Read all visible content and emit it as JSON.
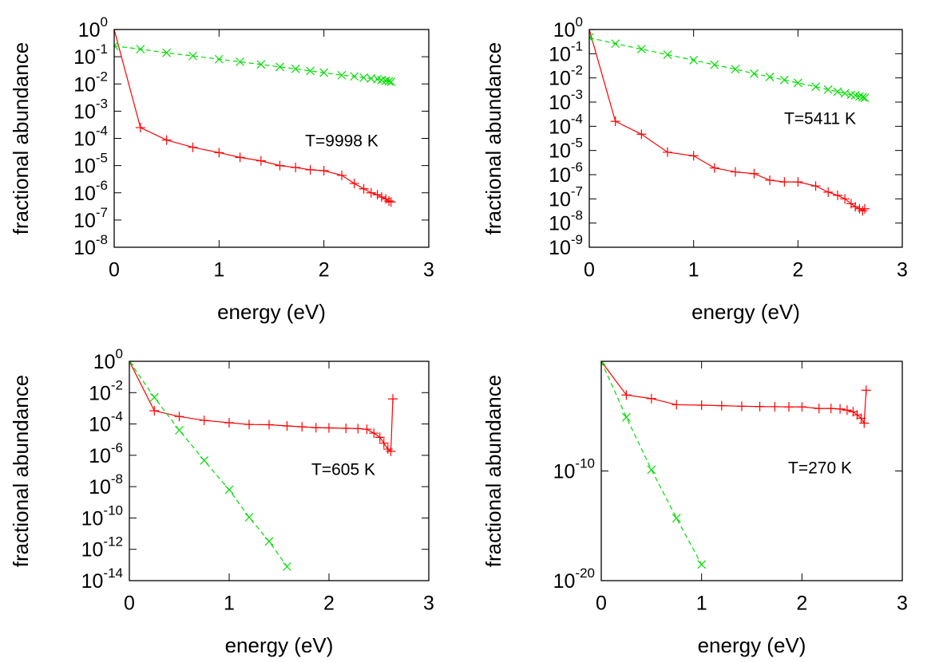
{
  "chart_data": [
    {
      "type": "line",
      "xlabel": "energy (eV)",
      "ylabel": "fractional abundance",
      "annotation": "T=9998 K",
      "xlim": [
        0,
        3
      ],
      "xticks": [
        0,
        1,
        2,
        3
      ],
      "ylog": true,
      "ylim": [
        1e-08,
        1
      ],
      "yticks": [
        {
          "value": 1,
          "label": "10^0"
        },
        {
          "value": 0.1,
          "label": "10^-1"
        },
        {
          "value": 0.01,
          "label": "10^-2"
        },
        {
          "value": 0.001,
          "label": "10^-3"
        },
        {
          "value": 0.0001,
          "label": "10^-4"
        },
        {
          "value": 1e-05,
          "label": "10^-5"
        },
        {
          "value": 1e-06,
          "label": "10^-6"
        },
        {
          "value": 1e-07,
          "label": "10^-7"
        },
        {
          "value": 1e-08,
          "label": "10^-8"
        }
      ],
      "x": [
        0,
        0.25,
        0.5,
        0.75,
        1.0,
        1.2,
        1.4,
        1.58,
        1.73,
        1.87,
        2.0,
        2.17,
        2.29,
        2.38,
        2.45,
        2.51,
        2.55,
        2.59,
        2.62,
        2.64
      ],
      "series": [
        {
          "color": "#ff0000",
          "marker": "+",
          "dashed": false,
          "values": [
            1,
            0.00025,
            8.7e-05,
            4.7e-05,
            3e-05,
            2e-05,
            1.5e-05,
            1e-05,
            8.5e-06,
            7e-06,
            6.5e-06,
            4.4e-06,
            2.2e-06,
            1.4e-06,
            1e-06,
            8.5e-07,
            7e-07,
            6e-07,
            5e-07,
            4.6e-07
          ]
        },
        {
          "color": "#00dd00",
          "marker": "x",
          "dashed": true,
          "values": [
            0.25,
            0.19,
            0.14,
            0.107,
            0.081,
            0.065,
            0.052,
            0.042,
            0.036,
            0.03,
            0.026,
            0.021,
            0.019,
            0.017,
            0.016,
            0.015,
            0.014,
            0.013,
            0.0125,
            0.012
          ]
        }
      ]
    },
    {
      "type": "line",
      "xlabel": "energy (eV)",
      "ylabel": "fractional abundance",
      "annotation": "T=5411 K",
      "xlim": [
        0,
        3
      ],
      "xticks": [
        0,
        1,
        2,
        3
      ],
      "ylog": true,
      "ylim": [
        1e-09,
        1
      ],
      "yticks": [
        {
          "value": 1,
          "label": "10^0"
        },
        {
          "value": 0.1,
          "label": "10^-1"
        },
        {
          "value": 0.01,
          "label": "10^-2"
        },
        {
          "value": 0.001,
          "label": "10^-3"
        },
        {
          "value": 0.0001,
          "label": "10^-4"
        },
        {
          "value": 1e-05,
          "label": "10^-5"
        },
        {
          "value": 1e-06,
          "label": "10^-6"
        },
        {
          "value": 1e-07,
          "label": "10^-7"
        },
        {
          "value": 1e-08,
          "label": "10^-8"
        },
        {
          "value": 1e-09,
          "label": "10^-9"
        }
      ],
      "x": [
        0,
        0.25,
        0.5,
        0.75,
        1.0,
        1.2,
        1.4,
        1.58,
        1.73,
        1.87,
        2.0,
        2.17,
        2.29,
        2.38,
        2.45,
        2.51,
        2.55,
        2.59,
        2.62,
        2.64
      ],
      "series": [
        {
          "color": "#ff0000",
          "marker": "+",
          "dashed": false,
          "values": [
            1,
            0.00016,
            4.7e-05,
            8.5e-06,
            6e-06,
            1.9e-06,
            1.3e-06,
            1.1e-06,
            5.9e-07,
            5e-07,
            5e-07,
            3.4e-07,
            1.9e-07,
            1.4e-07,
            1e-07,
            6.3e-08,
            4.7e-08,
            3.9e-08,
            3.2e-08,
            3.9e-08
          ]
        },
        {
          "color": "#00dd00",
          "marker": "x",
          "dashed": true,
          "values": [
            0.46,
            0.26,
            0.155,
            0.091,
            0.054,
            0.035,
            0.023,
            0.015,
            0.011,
            0.0082,
            0.0062,
            0.0043,
            0.0033,
            0.0027,
            0.0023,
            0.002,
            0.0019,
            0.0017,
            0.0016,
            0.0015
          ]
        }
      ]
    },
    {
      "type": "line",
      "xlabel": "energy (eV)",
      "ylabel": "fractional abundance",
      "annotation": "T=605 K",
      "xlim": [
        0,
        3
      ],
      "xticks": [
        0,
        1,
        2,
        3
      ],
      "ylog": true,
      "ylim": [
        1e-14,
        1
      ],
      "yticks": [
        {
          "value": 1,
          "label": "10^0"
        },
        {
          "value": 0.01,
          "label": "10^-2"
        },
        {
          "value": 0.0001,
          "label": "10^-4"
        },
        {
          "value": 1e-06,
          "label": "10^-6"
        },
        {
          "value": 1e-08,
          "label": "10^-8"
        },
        {
          "value": 1e-10,
          "label": "10^-10"
        },
        {
          "value": 1e-12,
          "label": "10^-12"
        },
        {
          "value": 1e-14,
          "label": "10^-14"
        }
      ],
      "x": [
        0,
        0.25,
        0.5,
        0.75,
        1.0,
        1.2,
        1.4,
        1.58,
        1.73,
        1.87,
        2.0,
        2.17,
        2.29,
        2.38,
        2.45,
        2.51,
        2.55,
        2.59,
        2.62,
        2.64
      ],
      "series": [
        {
          "color": "#ff0000",
          "marker": "+",
          "dashed": false,
          "values": [
            1,
            0.0007,
            0.0003,
            0.00017,
            0.00012,
            9.3e-05,
            9e-05,
            7.5e-05,
            6.6e-05,
            5.8e-05,
            5.6e-05,
            5.3e-05,
            5.1e-05,
            4.6e-05,
            2.6e-05,
            1.4e-05,
            6e-06,
            2.5e-06,
            1.8e-06,
            0.004
          ]
        },
        {
          "color": "#00dd00",
          "marker": "x",
          "dashed": true,
          "values": [
            1,
            0.005,
            4e-05,
            4.7e-07,
            6.3e-09,
            1.1e-10,
            3.2e-12,
            7.9e-14,
            null,
            null,
            null,
            null,
            null,
            null,
            null,
            null,
            null,
            null,
            null,
            null
          ]
        }
      ]
    },
    {
      "type": "line",
      "xlabel": "energy (eV)",
      "ylabel": "fractional abundance",
      "annotation": "T=270 K",
      "xlim": [
        0,
        3
      ],
      "xticks": [
        0,
        1,
        2,
        3
      ],
      "ylog": true,
      "ylim": [
        1e-20,
        1
      ],
      "yticks": [
        {
          "value": 1e-10,
          "label": "10^-10"
        },
        {
          "value": 1e-20,
          "label": "10^-20"
        }
      ],
      "x": [
        0,
        0.25,
        0.5,
        0.75,
        1.0,
        1.2,
        1.4,
        1.58,
        1.73,
        1.87,
        2.0,
        2.17,
        2.29,
        2.38,
        2.45,
        2.51,
        2.55,
        2.59,
        2.62,
        2.64
      ],
      "series": [
        {
          "color": "#ff0000",
          "marker": "+",
          "dashed": false,
          "values": [
            1,
            0.00085,
            0.0004,
            0.00011,
            0.0001,
            9e-05,
            8e-05,
            7.5e-05,
            7.2e-05,
            7e-05,
            7e-05,
            5e-05,
            5e-05,
            4.5e-05,
            3.5e-05,
            2.5e-05,
            1.3e-05,
            6.5e-06,
            2.3e-06,
            0.0023
          ]
        },
        {
          "color": "#00dd00",
          "marker": "x",
          "dashed": true,
          "values": [
            1,
            7.9e-06,
            1.3e-10,
            5e-15,
            3e-19,
            null,
            null,
            null,
            null,
            null,
            null,
            null,
            null,
            null,
            null,
            null,
            null,
            null,
            null,
            null
          ]
        }
      ]
    }
  ]
}
